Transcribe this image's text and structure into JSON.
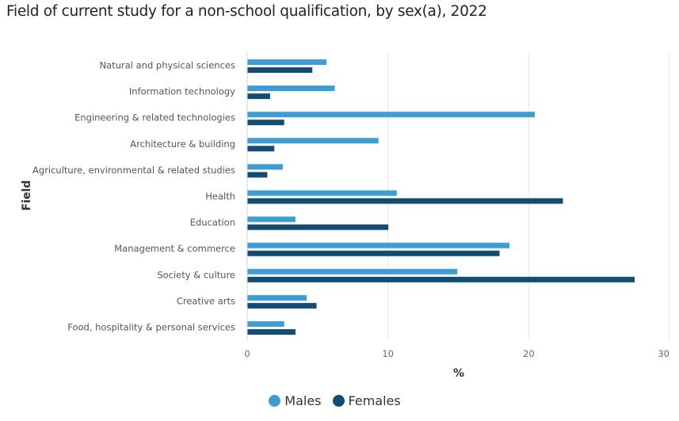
{
  "title": "Field of current study for a non-school qualification, by sex(a), 2022",
  "chart_data": {
    "type": "bar",
    "orientation": "horizontal",
    "title": "Field of current study for a non-school qualification, by sex(a), 2022",
    "xlabel": "%",
    "ylabel": "Field",
    "xlim": [
      0,
      30
    ],
    "xticks": [
      0,
      10,
      20,
      30
    ],
    "grid": true,
    "legend_position": "bottom-center",
    "categories": [
      "Natural and physical sciences",
      "Information technology",
      "Engineering & related technologies",
      "Architecture & building",
      "Agriculture, environmental & related studies",
      "Health",
      "Education",
      "Management & commerce",
      "Society & culture",
      "Creative arts",
      "Food, hospitality & personal services"
    ],
    "series": [
      {
        "name": "Males",
        "color": "#3e9dd2",
        "values": [
          5.6,
          6.2,
          20.4,
          9.3,
          2.5,
          10.6,
          3.4,
          18.6,
          14.9,
          4.2,
          2.6
        ]
      },
      {
        "name": "Females",
        "color": "#134c73",
        "values": [
          4.6,
          1.6,
          2.6,
          1.9,
          1.4,
          22.4,
          10.0,
          17.9,
          27.5,
          4.9,
          3.4
        ]
      }
    ]
  }
}
